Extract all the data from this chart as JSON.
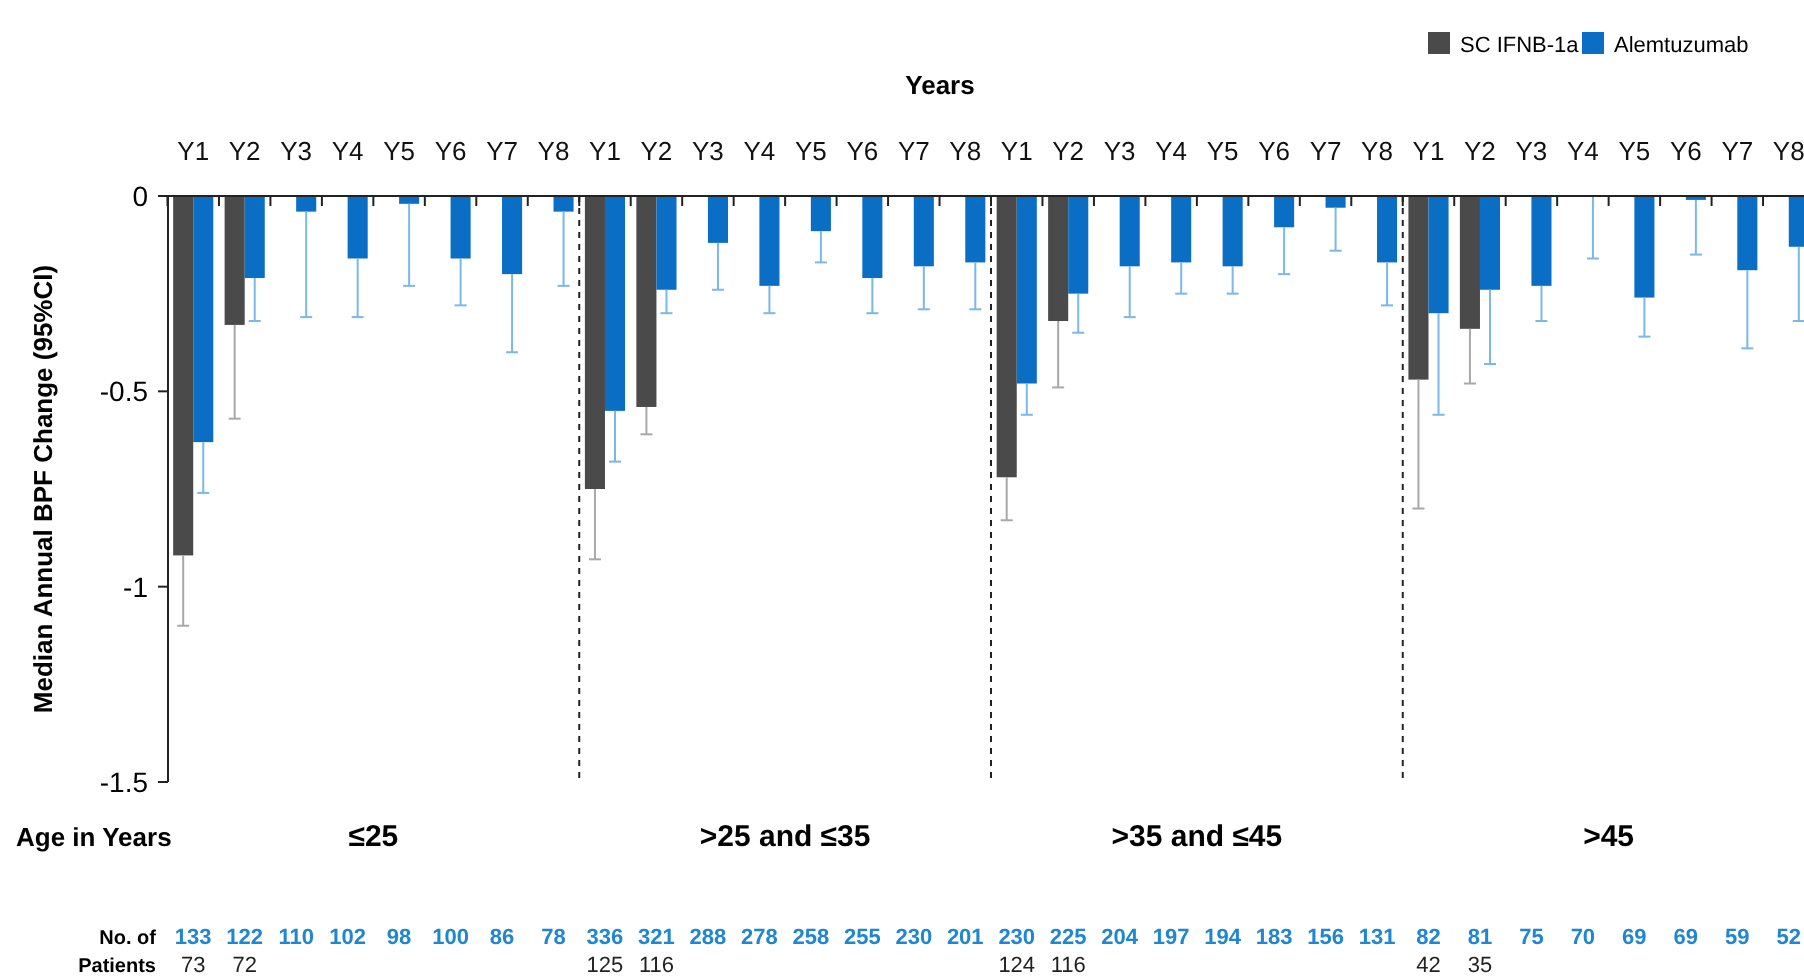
{
  "chart_data": {
    "type": "bar",
    "xlabel": "Years",
    "ylabel": "Median Annual BPF Change  (95%CI)",
    "categories": [
      "Y1",
      "Y2",
      "Y3",
      "Y4",
      "Y5",
      "Y6",
      "Y7",
      "Y8",
      "Y1",
      "Y2",
      "Y3",
      "Y4",
      "Y5",
      "Y6",
      "Y7",
      "Y8",
      "Y1",
      "Y2",
      "Y3",
      "Y4",
      "Y5",
      "Y6",
      "Y7",
      "Y8",
      "Y1",
      "Y2",
      "Y3",
      "Y4",
      "Y5",
      "Y6",
      "Y7",
      "Y8"
    ],
    "series": [
      {
        "name": "SC IFNB-1a",
        "color": "#4a4a4a",
        "values": [
          -0.92,
          -0.33,
          null,
          null,
          null,
          null,
          null,
          null,
          -0.75,
          -0.54,
          null,
          null,
          null,
          null,
          null,
          null,
          -0.72,
          -0.32,
          null,
          null,
          null,
          null,
          null,
          null,
          -0.47,
          -0.34,
          null,
          null,
          null,
          null,
          null,
          null
        ],
        "errors": [
          [
            -1.1,
            -0.92
          ],
          [
            -0.57,
            -0.33
          ],
          null,
          null,
          null,
          null,
          null,
          null,
          [
            -0.93,
            -0.75
          ],
          [
            -0.61,
            -0.54
          ],
          null,
          null,
          null,
          null,
          null,
          null,
          [
            -0.83,
            -0.72
          ],
          [
            -0.49,
            -0.32
          ],
          null,
          null,
          null,
          null,
          null,
          null,
          [
            -0.8,
            -0.47
          ],
          [
            -0.48,
            -0.34
          ],
          null,
          null,
          null,
          null,
          null,
          null
        ]
      },
      {
        "name": "Alemtuzumab",
        "color": "#0a6fc4",
        "values": [
          -0.63,
          -0.21,
          -0.04,
          -0.16,
          -0.02,
          -0.16,
          -0.2,
          -0.04,
          -0.55,
          -0.24,
          -0.12,
          -0.23,
          -0.09,
          -0.21,
          -0.18,
          -0.17,
          -0.48,
          -0.25,
          -0.18,
          -0.17,
          -0.18,
          -0.08,
          -0.03,
          -0.17,
          -0.3,
          -0.24,
          -0.23,
          0,
          -0.26,
          -0.01,
          -0.19,
          -0.13
        ],
        "errors": [
          [
            -0.76,
            -0.63
          ],
          [
            -0.32,
            -0.21
          ],
          [
            -0.31,
            -0.04
          ],
          [
            -0.31,
            -0.16
          ],
          [
            -0.23,
            -0.02
          ],
          [
            -0.28,
            -0.16
          ],
          [
            -0.4,
            -0.2
          ],
          [
            -0.23,
            -0.04
          ],
          [
            -0.68,
            -0.55
          ],
          [
            -0.3,
            -0.24
          ],
          [
            -0.24,
            -0.12
          ],
          [
            -0.3,
            -0.23
          ],
          [
            -0.17,
            -0.09
          ],
          [
            -0.3,
            -0.21
          ],
          [
            -0.29,
            -0.18
          ],
          [
            -0.29,
            -0.17
          ],
          [
            -0.56,
            -0.48
          ],
          [
            -0.35,
            -0.25
          ],
          [
            -0.31,
            -0.18
          ],
          [
            -0.25,
            -0.17
          ],
          [
            -0.25,
            -0.18
          ],
          [
            -0.2,
            -0.08
          ],
          [
            -0.14,
            -0.03
          ],
          [
            -0.28,
            -0.17
          ],
          [
            -0.56,
            -0.3
          ],
          [
            -0.43,
            -0.24
          ],
          [
            -0.32,
            -0.23
          ],
          [
            -0.16,
            0
          ],
          [
            -0.36,
            -0.26
          ],
          [
            -0.15,
            -0.01
          ],
          [
            -0.39,
            -0.19
          ],
          [
            -0.32,
            -0.13
          ]
        ]
      }
    ],
    "ylim": [
      -1.5,
      0
    ],
    "yticks": [
      0,
      -0.5,
      -1,
      -1.5
    ],
    "legend": "top right",
    "grid": false,
    "annotations": [
      "Age in Years",
      "≤25",
      ">25 and ≤35",
      ">35 and ≤45",
      ">45",
      "No. of",
      "Patients",
      "133",
      "122",
      "110",
      "102",
      "98",
      "100",
      "86",
      "78",
      "336",
      "321",
      "288",
      "278",
      "258",
      "255",
      "230",
      "201",
      "230",
      "225",
      "204",
      "197",
      "194",
      "183",
      "156",
      "131",
      "82",
      "81",
      "75",
      "70",
      "69",
      "69",
      "59",
      "52",
      "73",
      "72",
      "125",
      "116",
      "124",
      "116",
      "42",
      "35"
    ]
  }
}
